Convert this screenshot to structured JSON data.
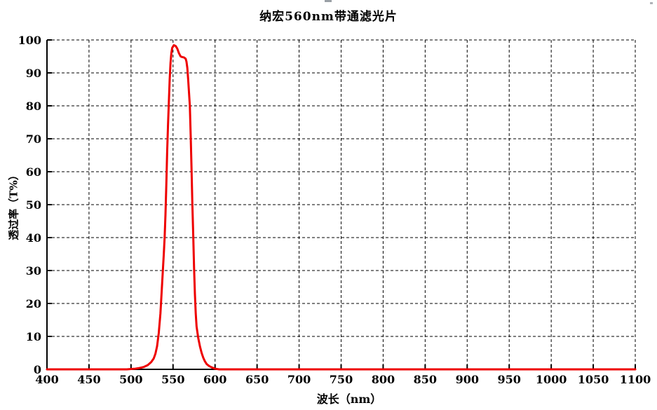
{
  "decorations": {
    "top_center_artifact_color": "#9aa0a6",
    "top_right_artifact_color": "#b0b3b8"
  },
  "chart_data": {
    "type": "line",
    "title": "纳宏560nm带通滤光片",
    "xlabel": "波长（nm）",
    "ylabel": "透过率（T%）",
    "xlim": [
      400,
      1100
    ],
    "ylim": [
      0,
      100
    ],
    "xticks": [
      400,
      450,
      500,
      550,
      600,
      650,
      700,
      750,
      800,
      850,
      900,
      950,
      1000,
      1050,
      1100
    ],
    "yticks": [
      0,
      10,
      20,
      30,
      40,
      50,
      60,
      70,
      80,
      90,
      100
    ],
    "grid": "dashed",
    "legend": "none",
    "axis_color": "#000000",
    "grid_color": "#000000",
    "line_color": "#ee0000",
    "line_width": 3,
    "series": [
      {
        "name": "560nm-bandpass-transmittance",
        "points": [
          [
            400,
            0
          ],
          [
            425,
            0
          ],
          [
            450,
            0
          ],
          [
            475,
            0
          ],
          [
            495,
            0
          ],
          [
            500,
            0.1
          ],
          [
            505,
            0.2
          ],
          [
            510,
            0.4
          ],
          [
            515,
            0.7
          ],
          [
            520,
            1.3
          ],
          [
            524,
            2.2
          ],
          [
            527,
            3.3
          ],
          [
            529,
            4.7
          ],
          [
            531,
            7
          ],
          [
            533,
            11
          ],
          [
            535,
            17
          ],
          [
            537,
            26
          ],
          [
            539,
            35
          ],
          [
            540,
            40
          ],
          [
            541,
            47
          ],
          [
            542,
            56
          ],
          [
            543,
            66
          ],
          [
            544,
            74
          ],
          [
            545,
            81
          ],
          [
            546,
            88
          ],
          [
            547,
            93
          ],
          [
            548,
            96
          ],
          [
            549,
            97.6
          ],
          [
            551,
            98.4
          ],
          [
            553,
            98.2
          ],
          [
            555,
            97.4
          ],
          [
            557,
            96
          ],
          [
            559,
            95
          ],
          [
            561,
            94.8
          ],
          [
            563,
            94.7
          ],
          [
            565,
            94.3
          ],
          [
            566,
            93.4
          ],
          [
            567,
            91.5
          ],
          [
            568,
            88
          ],
          [
            569,
            84
          ],
          [
            570,
            80
          ],
          [
            571,
            71
          ],
          [
            572,
            61
          ],
          [
            573,
            50
          ],
          [
            574,
            41
          ],
          [
            575,
            31
          ],
          [
            576,
            23
          ],
          [
            577,
            17
          ],
          [
            578,
            13
          ],
          [
            580,
            9.5
          ],
          [
            582,
            7
          ],
          [
            584,
            5
          ],
          [
            586,
            3.5
          ],
          [
            588,
            2.4
          ],
          [
            590,
            1.6
          ],
          [
            593,
            1
          ],
          [
            596,
            0.6
          ],
          [
            600,
            0.2
          ],
          [
            605,
            0
          ],
          [
            625,
            0
          ],
          [
            650,
            0
          ],
          [
            675,
            0
          ],
          [
            700,
            0
          ],
          [
            725,
            0
          ],
          [
            750,
            0
          ],
          [
            775,
            0
          ],
          [
            800,
            0
          ],
          [
            825,
            0
          ],
          [
            850,
            0
          ],
          [
            875,
            0
          ],
          [
            900,
            0
          ],
          [
            925,
            0
          ],
          [
            950,
            0
          ],
          [
            975,
            0
          ],
          [
            1000,
            0
          ],
          [
            1025,
            0
          ],
          [
            1050,
            0
          ],
          [
            1075,
            0
          ],
          [
            1100,
            0
          ]
        ]
      }
    ]
  }
}
